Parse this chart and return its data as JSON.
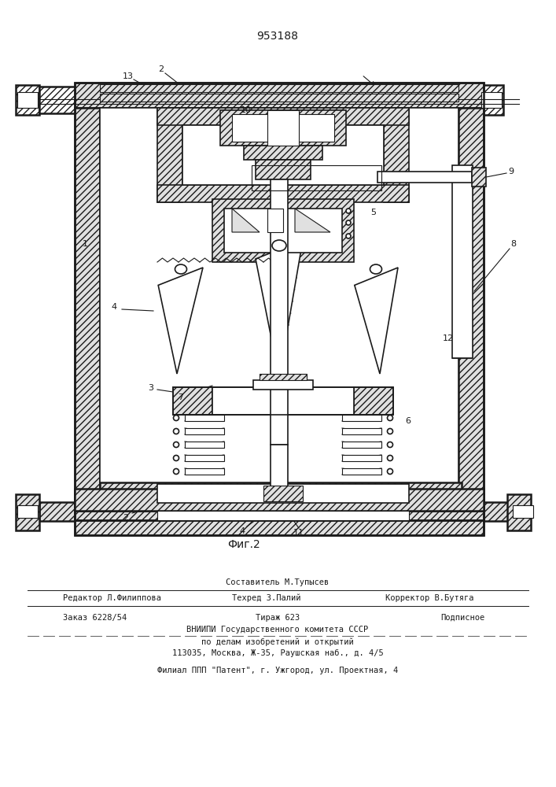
{
  "patent_number": "953188",
  "fig_label": "Фиг.2",
  "editor_line": "Редактор Л.Филиппова",
  "composer_line": "Составитель М.Тупысев",
  "techred_line": "Техред З.Палий",
  "corrector_line": "Корректор В.Бутяга",
  "order_line": "Заказ 6228/54",
  "tiraz_line": "Тираж 623",
  "podpis_line": "Подписное",
  "vniip_line1": "ВНИИПИ Государственного комитета СССР",
  "vniip_line2": "по делам изобретений и открытий",
  "vniip_line3": "113035, Москва, Ж-35, Раушская наб., д. 4/5",
  "filial_line": "Филиал ППП \"Патент\", г. Ужгород, ул. Проектная, 4",
  "bg_color": "#ffffff",
  "line_color": "#1a1a1a"
}
